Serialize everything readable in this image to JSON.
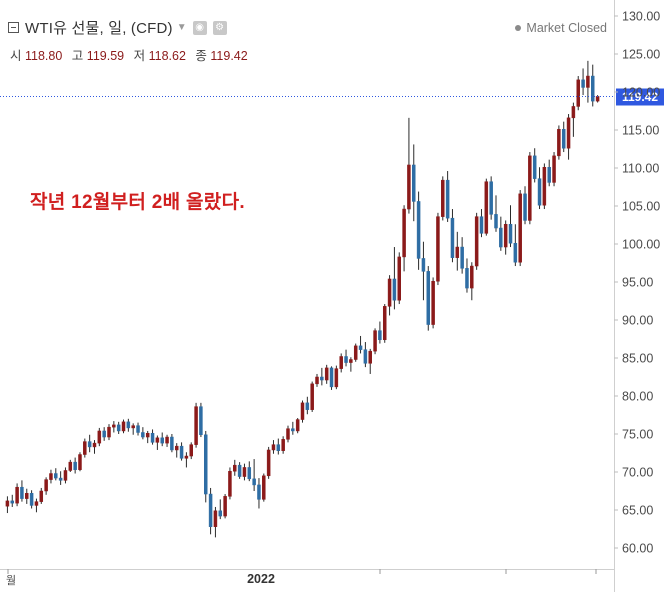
{
  "header": {
    "title": "WTI유 선물, 일, (CFD)",
    "market_status": "Market Closed",
    "ohlc": [
      {
        "label": "시",
        "value": "118.80"
      },
      {
        "label": "고",
        "value": "119.59"
      },
      {
        "label": "저",
        "value": "118.62"
      },
      {
        "label": "종",
        "value": "119.42"
      }
    ]
  },
  "annotation": "작년 12월부터 2배 올랐다.",
  "colors": {
    "up": "#8b1a1a",
    "down": "#2e6da4",
    "wick": "#2a2a2a",
    "price_line": "#2f58e0",
    "price_tag": "#2f58e0",
    "annotation": "#d01f1f"
  },
  "chart_data": {
    "type": "candlestick",
    "title": "WTI유 선물, 일, (CFD)",
    "ylim": [
      59,
      130.5
    ],
    "y_ticks": [
      "130.00",
      "125.00",
      "120.00",
      "115.00",
      "110.00",
      "105.00",
      "100.00",
      "95.00",
      "90.00",
      "85.00",
      "80.00",
      "75.00",
      "70.00",
      "65.00",
      "60.00"
    ],
    "x_ticks": [
      "월",
      "2022"
    ],
    "last_price": "119.42",
    "series": [
      {
        "name": "WTI",
        "ohlc": [
          [
            65.5,
            66.8,
            64.6,
            66.2
          ],
          [
            66.2,
            67.0,
            65.4,
            65.9
          ],
          [
            65.9,
            68.5,
            65.5,
            68.0
          ],
          [
            68.0,
            68.9,
            66.1,
            66.5
          ],
          [
            66.5,
            67.8,
            65.8,
            67.2
          ],
          [
            67.2,
            67.6,
            65.2,
            65.6
          ],
          [
            65.6,
            66.5,
            64.7,
            66.1
          ],
          [
            66.1,
            67.9,
            65.8,
            67.5
          ],
          [
            67.5,
            69.3,
            67.0,
            69.0
          ],
          [
            69.0,
            70.3,
            68.5,
            69.8
          ],
          [
            69.8,
            70.5,
            68.9,
            69.2
          ],
          [
            69.2,
            70.1,
            68.3,
            68.9
          ],
          [
            68.9,
            70.6,
            68.5,
            70.2
          ],
          [
            70.2,
            71.6,
            70.0,
            71.3
          ],
          [
            71.3,
            71.9,
            69.8,
            70.3
          ],
          [
            70.3,
            72.6,
            70.1,
            72.3
          ],
          [
            72.3,
            74.4,
            71.9,
            74.0
          ],
          [
            74.0,
            74.9,
            72.6,
            73.3
          ],
          [
            73.3,
            74.2,
            72.4,
            73.8
          ],
          [
            73.8,
            75.8,
            73.4,
            75.4
          ],
          [
            75.4,
            75.9,
            74.1,
            74.6
          ],
          [
            74.6,
            76.3,
            74.2,
            75.9
          ],
          [
            75.9,
            76.7,
            75.2,
            76.2
          ],
          [
            76.2,
            76.6,
            75.0,
            75.4
          ],
          [
            75.4,
            76.9,
            75.1,
            76.6
          ],
          [
            76.6,
            77.0,
            75.3,
            75.8
          ],
          [
            75.8,
            76.4,
            74.9,
            76.1
          ],
          [
            76.1,
            76.5,
            74.8,
            75.2
          ],
          [
            75.2,
            75.9,
            74.3,
            74.6
          ],
          [
            74.6,
            75.4,
            73.8,
            75.1
          ],
          [
            75.1,
            75.6,
            73.6,
            73.9
          ],
          [
            73.9,
            74.8,
            72.9,
            74.5
          ],
          [
            74.5,
            75.2,
            73.4,
            73.8
          ],
          [
            73.8,
            74.9,
            73.3,
            74.6
          ],
          [
            74.6,
            75.0,
            72.6,
            72.9
          ],
          [
            72.9,
            73.8,
            71.9,
            73.4
          ],
          [
            73.4,
            73.9,
            71.5,
            71.8
          ],
          [
            71.8,
            72.6,
            70.6,
            72.1
          ],
          [
            72.1,
            73.9,
            71.7,
            73.6
          ],
          [
            73.6,
            79.1,
            73.2,
            78.6
          ],
          [
            78.6,
            79.1,
            74.6,
            74.9
          ],
          [
            74.9,
            75.4,
            66.0,
            67.1
          ],
          [
            67.1,
            67.9,
            61.8,
            62.8
          ],
          [
            62.8,
            65.4,
            61.4,
            64.9
          ],
          [
            64.9,
            66.4,
            63.8,
            64.2
          ],
          [
            64.2,
            67.1,
            63.9,
            66.8
          ],
          [
            66.8,
            70.6,
            66.4,
            70.1
          ],
          [
            70.1,
            71.6,
            69.5,
            70.9
          ],
          [
            70.9,
            71.3,
            69.1,
            69.4
          ],
          [
            69.4,
            71.1,
            68.9,
            70.6
          ],
          [
            70.6,
            71.4,
            68.8,
            69.1
          ],
          [
            69.1,
            71.7,
            67.5,
            68.3
          ],
          [
            68.3,
            69.2,
            65.2,
            66.4
          ],
          [
            66.4,
            69.8,
            66.1,
            69.5
          ],
          [
            69.5,
            73.3,
            69.1,
            72.9
          ],
          [
            72.9,
            74.2,
            72.4,
            73.6
          ],
          [
            73.6,
            74.4,
            72.3,
            72.8
          ],
          [
            72.8,
            74.7,
            72.4,
            74.3
          ],
          [
            74.3,
            76.1,
            73.9,
            75.7
          ],
          [
            75.7,
            76.6,
            74.9,
            75.4
          ],
          [
            75.4,
            77.1,
            75.1,
            76.9
          ],
          [
            76.9,
            79.4,
            76.5,
            79.1
          ],
          [
            79.1,
            79.9,
            77.6,
            78.2
          ],
          [
            78.2,
            81.9,
            77.9,
            81.6
          ],
          [
            81.6,
            82.9,
            81.2,
            82.5
          ],
          [
            82.5,
            83.7,
            81.4,
            82.1
          ],
          [
            82.1,
            84.1,
            81.6,
            83.7
          ],
          [
            83.7,
            83.9,
            80.8,
            81.2
          ],
          [
            81.2,
            84.0,
            80.9,
            83.6
          ],
          [
            83.6,
            85.6,
            83.1,
            85.2
          ],
          [
            85.2,
            86.1,
            83.9,
            84.4
          ],
          [
            84.4,
            85.1,
            83.2,
            84.8
          ],
          [
            84.8,
            86.9,
            84.5,
            86.6
          ],
          [
            86.6,
            87.9,
            85.6,
            86.1
          ],
          [
            86.1,
            87.1,
            83.8,
            84.3
          ],
          [
            84.3,
            86.2,
            82.9,
            85.9
          ],
          [
            85.9,
            88.9,
            85.5,
            88.6
          ],
          [
            88.6,
            89.8,
            86.9,
            87.4
          ],
          [
            87.4,
            92.1,
            87.0,
            91.8
          ],
          [
            91.8,
            95.9,
            90.6,
            95.4
          ],
          [
            95.4,
            99.6,
            91.4,
            92.6
          ],
          [
            92.6,
            98.9,
            92.1,
            98.3
          ],
          [
            98.3,
            105.1,
            96.4,
            104.6
          ],
          [
            104.6,
            116.6,
            104.0,
            110.4
          ],
          [
            110.4,
            113.1,
            103.0,
            105.6
          ],
          [
            105.6,
            106.9,
            96.6,
            98.1
          ],
          [
            98.1,
            100.3,
            92.6,
            96.4
          ],
          [
            96.4,
            97.1,
            88.6,
            89.4
          ],
          [
            89.4,
            95.6,
            88.9,
            95.1
          ],
          [
            95.1,
            104.1,
            94.6,
            103.6
          ],
          [
            103.6,
            108.9,
            103.1,
            108.4
          ],
          [
            108.4,
            109.6,
            102.9,
            103.4
          ],
          [
            103.4,
            104.6,
            97.6,
            98.2
          ],
          [
            98.2,
            101.6,
            96.5,
            99.6
          ],
          [
            99.6,
            100.9,
            96.1,
            96.8
          ],
          [
            96.8,
            98.1,
            93.6,
            94.2
          ],
          [
            94.2,
            97.6,
            92.6,
            97.1
          ],
          [
            97.1,
            104.1,
            96.6,
            103.6
          ],
          [
            103.6,
            104.6,
            100.9,
            101.4
          ],
          [
            101.4,
            108.6,
            101.1,
            108.2
          ],
          [
            108.2,
            108.9,
            103.2,
            103.9
          ],
          [
            103.9,
            106.4,
            101.6,
            102.1
          ],
          [
            102.1,
            103.6,
            99.1,
            99.6
          ],
          [
            99.6,
            103.1,
            98.6,
            102.6
          ],
          [
            102.6,
            105.1,
            99.6,
            100.1
          ],
          [
            100.1,
            102.6,
            97.1,
            97.6
          ],
          [
            97.6,
            107.1,
            97.1,
            106.6
          ],
          [
            106.6,
            107.6,
            102.6,
            103.1
          ],
          [
            103.1,
            112.1,
            102.6,
            111.6
          ],
          [
            111.6,
            112.6,
            108.1,
            108.6
          ],
          [
            108.6,
            110.1,
            104.6,
            105.1
          ],
          [
            105.1,
            110.6,
            104.6,
            110.1
          ],
          [
            110.1,
            111.1,
            107.6,
            108.1
          ],
          [
            108.1,
            112.1,
            107.6,
            111.6
          ],
          [
            111.6,
            115.6,
            111.1,
            115.1
          ],
          [
            115.1,
            116.1,
            112.1,
            112.6
          ],
          [
            112.6,
            117.1,
            111.1,
            116.6
          ],
          [
            116.6,
            118.6,
            114.1,
            118.1
          ],
          [
            118.1,
            122.1,
            117.6,
            121.6
          ],
          [
            121.6,
            123.1,
            119.6,
            120.6
          ],
          [
            120.6,
            124.1,
            118.6,
            122.1
          ],
          [
            122.1,
            123.6,
            118.1,
            118.8
          ],
          [
            118.8,
            119.59,
            118.62,
            119.42
          ]
        ]
      }
    ]
  }
}
